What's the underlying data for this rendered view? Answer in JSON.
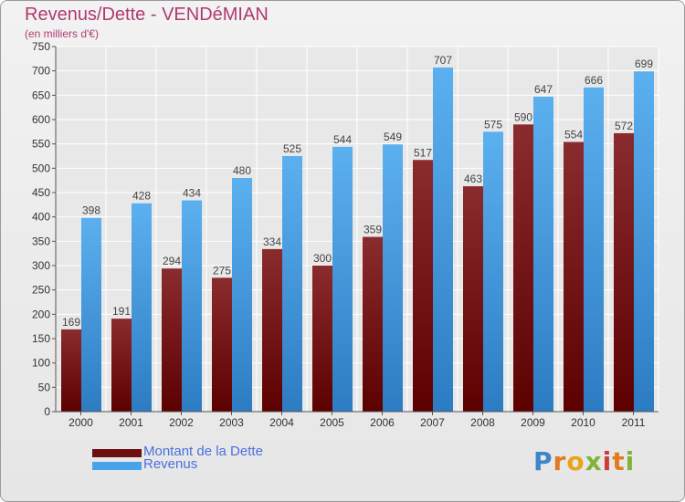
{
  "title": "Revenus/Dette - VENDéMIAN",
  "subtitle": "(en milliers d'€)",
  "brand": "Proxiti",
  "colors": {
    "title": "#b03a6f",
    "debt": "#7b1f20",
    "revenue": "#4aa3e8",
    "legend_text": "#4a6fe0"
  },
  "legend": [
    {
      "label": "Montant de la Dette",
      "color": "#6b0f10"
    },
    {
      "label": "Revenus",
      "color": "#4aa3e8"
    }
  ],
  "chart_data": {
    "type": "bar",
    "title": "Revenus/Dette - VENDéMIAN",
    "subtitle": "(en milliers d'€)",
    "xlabel": "",
    "ylabel": "",
    "ylim": [
      0,
      750
    ],
    "y_ticks": [
      0,
      50,
      100,
      150,
      200,
      250,
      300,
      350,
      400,
      450,
      500,
      550,
      600,
      650,
      700,
      750
    ],
    "grid": true,
    "legend_position": "bottom-left",
    "categories": [
      "2000",
      "2001",
      "2002",
      "2003",
      "2004",
      "2005",
      "2006",
      "2007",
      "2008",
      "2009",
      "2010",
      "2011"
    ],
    "series": [
      {
        "name": "Montant de la Dette",
        "values": [
          169,
          191,
          294,
          275,
          334,
          300,
          359,
          517,
          463,
          590,
          554,
          572
        ]
      },
      {
        "name": "Revenus",
        "values": [
          398,
          428,
          434,
          480,
          525,
          544,
          549,
          707,
          575,
          647,
          666,
          699
        ]
      }
    ]
  }
}
